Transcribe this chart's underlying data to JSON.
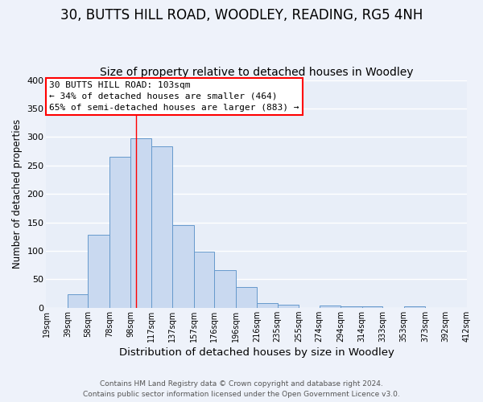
{
  "title": "30, BUTTS HILL ROAD, WOODLEY, READING, RG5 4NH",
  "subtitle": "Size of property relative to detached houses in Woodley",
  "xlabel": "Distribution of detached houses by size in Woodley",
  "ylabel": "Number of detached properties",
  "bar_values": [
    0,
    23,
    128,
    265,
    297,
    283,
    145,
    98,
    66,
    37,
    8,
    5,
    0,
    4,
    2,
    2,
    0,
    2,
    0
  ],
  "bar_left_edges": [
    19,
    39,
    58,
    78,
    98,
    117,
    137,
    157,
    176,
    196,
    216,
    235,
    255,
    274,
    294,
    314,
    333,
    353,
    373
  ],
  "bar_widths": [
    20,
    19,
    20,
    20,
    19,
    20,
    20,
    19,
    20,
    20,
    19,
    20,
    19,
    20,
    20,
    19,
    20,
    20,
    19
  ],
  "tick_labels": [
    "19sqm",
    "39sqm",
    "58sqm",
    "78sqm",
    "98sqm",
    "117sqm",
    "137sqm",
    "157sqm",
    "176sqm",
    "196sqm",
    "216sqm",
    "235sqm",
    "255sqm",
    "274sqm",
    "294sqm",
    "314sqm",
    "333sqm",
    "353sqm",
    "373sqm",
    "392sqm",
    "412sqm"
  ],
  "tick_positions": [
    19,
    39,
    58,
    78,
    98,
    117,
    137,
    157,
    176,
    196,
    216,
    235,
    255,
    274,
    294,
    314,
    333,
    353,
    373,
    392,
    412
  ],
  "bar_color": "#c9d9f0",
  "bar_edge_color": "#6699cc",
  "vline_x": 103,
  "vline_color": "red",
  "annotation_title": "30 BUTTS HILL ROAD: 103sqm",
  "annotation_line1": "← 34% of detached houses are smaller (464)",
  "annotation_line2": "65% of semi-detached houses are larger (883) →",
  "annotation_box_color": "white",
  "annotation_box_edge": "red",
  "ylim": [
    0,
    400
  ],
  "xlim": [
    19,
    412
  ],
  "bg_color": "#eef2fa",
  "plot_bg_color": "#e8eef8",
  "grid_color": "white",
  "footer_line1": "Contains HM Land Registry data © Crown copyright and database right 2024.",
  "footer_line2": "Contains public sector information licensed under the Open Government Licence v3.0.",
  "title_fontsize": 12,
  "subtitle_fontsize": 10
}
